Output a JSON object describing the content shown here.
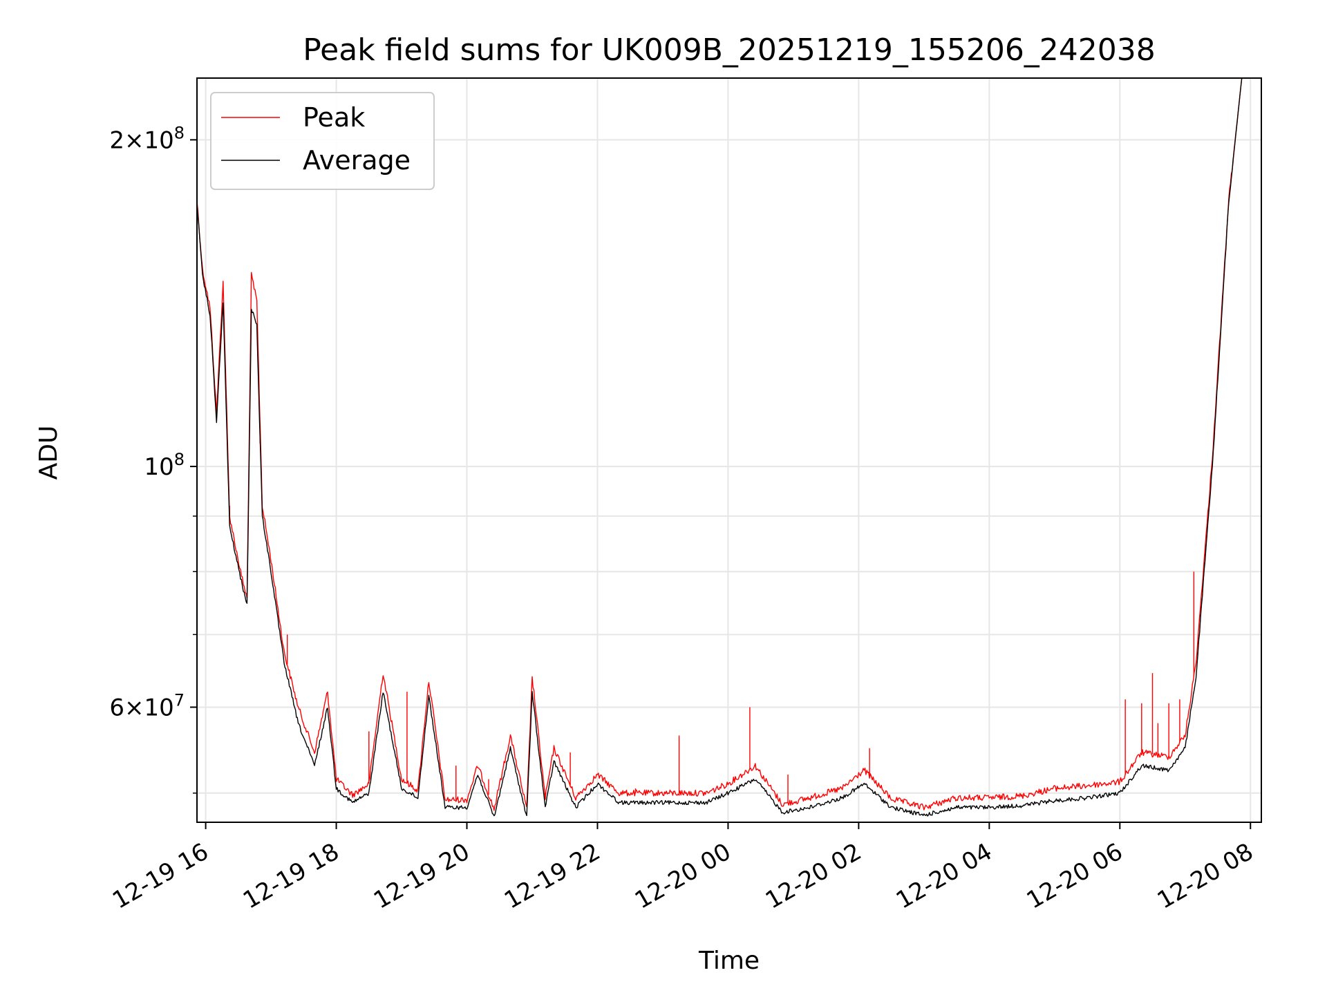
{
  "chart_data": {
    "type": "line",
    "title": "Peak field sums for UK009B_20251219_155206_242038",
    "xlabel": "Time",
    "ylabel": "ADU",
    "yscale": "log",
    "xlim": [
      "2025-12-19 15:52",
      "2025-12-20 08:10"
    ],
    "ylim": [
      47000000,
      228000000
    ],
    "grid": true,
    "legend": {
      "position": "top-left",
      "entries": [
        "Peak",
        "Average"
      ]
    },
    "x_ticks": [
      "12-19 16",
      "12-19 18",
      "12-19 20",
      "12-19 22",
      "12-20 00",
      "12-20 02",
      "12-20 04",
      "12-20 06",
      "12-20 08"
    ],
    "y_tick_labels": [
      {
        "value": 200000000,
        "mantissa": "2",
        "exponent": "8"
      },
      {
        "value": 100000000,
        "mantissa": "",
        "exponent": "8"
      },
      {
        "value": 60000000,
        "mantissa": "6",
        "exponent": "7"
      }
    ],
    "y_minor_ticks": [
      50000000,
      70000000,
      80000000,
      90000000
    ],
    "series": [
      {
        "name": "Average",
        "color": "#000000",
        "points": [
          [
            "2025-12-19 15:52",
            175000000
          ],
          [
            "2025-12-19 15:57",
            150000000
          ],
          [
            "2025-12-19 16:04",
            138000000
          ],
          [
            "2025-12-19 16:10",
            110000000
          ],
          [
            "2025-12-19 16:16",
            142000000
          ],
          [
            "2025-12-19 16:22",
            88000000
          ],
          [
            "2025-12-19 16:32",
            79000000
          ],
          [
            "2025-12-19 16:38",
            74500000
          ],
          [
            "2025-12-19 16:42",
            140000000
          ],
          [
            "2025-12-19 16:47",
            135000000
          ],
          [
            "2025-12-19 16:52",
            90000000
          ],
          [
            "2025-12-19 17:00",
            80000000
          ],
          [
            "2025-12-19 17:12",
            66000000
          ],
          [
            "2025-12-19 17:25",
            58000000
          ],
          [
            "2025-12-19 17:40",
            53000000
          ],
          [
            "2025-12-19 17:52",
            60000000
          ],
          [
            "2025-12-19 18:00",
            50500000
          ],
          [
            "2025-12-19 18:15",
            49000000
          ],
          [
            "2025-12-19 18:30",
            50000000
          ],
          [
            "2025-12-19 18:43",
            62000000
          ],
          [
            "2025-12-19 19:00",
            50500000
          ],
          [
            "2025-12-19 19:15",
            49500000
          ],
          [
            "2025-12-19 19:25",
            61500000
          ],
          [
            "2025-12-19 19:40",
            48500000
          ],
          [
            "2025-12-19 20:00",
            48500000
          ],
          [
            "2025-12-19 20:10",
            52000000
          ],
          [
            "2025-12-19 20:25",
            47500000
          ],
          [
            "2025-12-19 20:40",
            55000000
          ],
          [
            "2025-12-19 20:55",
            47500000
          ],
          [
            "2025-12-19 21:00",
            62000000
          ],
          [
            "2025-12-19 21:12",
            48500000
          ],
          [
            "2025-12-19 21:20",
            53500000
          ],
          [
            "2025-12-19 21:40",
            48500000
          ],
          [
            "2025-12-19 22:00",
            51000000
          ],
          [
            "2025-12-19 22:20",
            49000000
          ],
          [
            "2025-12-19 23:00",
            49000000
          ],
          [
            "2025-12-19 23:40",
            49000000
          ],
          [
            "2025-12-20 00:00",
            50000000
          ],
          [
            "2025-12-20 00:25",
            51500000
          ],
          [
            "2025-12-20 00:50",
            48000000
          ],
          [
            "2025-12-20 01:15",
            48500000
          ],
          [
            "2025-12-20 01:45",
            49500000
          ],
          [
            "2025-12-20 02:05",
            51000000
          ],
          [
            "2025-12-20 02:30",
            48500000
          ],
          [
            "2025-12-20 03:00",
            47700000
          ],
          [
            "2025-12-20 03:30",
            48500000
          ],
          [
            "2025-12-20 04:00",
            48500000
          ],
          [
            "2025-12-20 04:30",
            48700000
          ],
          [
            "2025-12-20 05:00",
            49200000
          ],
          [
            "2025-12-20 05:30",
            49500000
          ],
          [
            "2025-12-20 06:00",
            50000000
          ],
          [
            "2025-12-20 06:20",
            53000000
          ],
          [
            "2025-12-20 06:45",
            52500000
          ],
          [
            "2025-12-20 07:00",
            55000000
          ],
          [
            "2025-12-20 07:10",
            64000000
          ],
          [
            "2025-12-20 07:25",
            100000000
          ],
          [
            "2025-12-20 07:40",
            175000000
          ],
          [
            "2025-12-20 07:52",
            228000000
          ],
          [
            "2025-12-20 08:10",
            228000000
          ]
        ]
      },
      {
        "name": "Peak",
        "color": "#ff0000",
        "points": [
          [
            "2025-12-19 15:52",
            176000000
          ],
          [
            "2025-12-19 15:57",
            152000000
          ],
          [
            "2025-12-19 16:04",
            140000000
          ],
          [
            "2025-12-19 16:10",
            112000000
          ],
          [
            "2025-12-19 16:16",
            148000000
          ],
          [
            "2025-12-19 16:22",
            90000000
          ],
          [
            "2025-12-19 16:32",
            80000000
          ],
          [
            "2025-12-19 16:38",
            75500000
          ],
          [
            "2025-12-19 16:42",
            150000000
          ],
          [
            "2025-12-19 16:47",
            142000000
          ],
          [
            "2025-12-19 16:52",
            92000000
          ],
          [
            "2025-12-19 17:00",
            82000000
          ],
          [
            "2025-12-19 17:12",
            67500000
          ],
          [
            "2025-12-19 17:25",
            60000000
          ],
          [
            "2025-12-19 17:40",
            54500000
          ],
          [
            "2025-12-19 17:52",
            62000000
          ],
          [
            "2025-12-19 18:00",
            51500000
          ],
          [
            "2025-12-19 18:15",
            49800000
          ],
          [
            "2025-12-19 18:30",
            51000000
          ],
          [
            "2025-12-19 18:43",
            64500000
          ],
          [
            "2025-12-19 19:00",
            51500000
          ],
          [
            "2025-12-19 19:15",
            50300000
          ],
          [
            "2025-12-19 19:25",
            63500000
          ],
          [
            "2025-12-19 19:40",
            49300000
          ],
          [
            "2025-12-19 20:00",
            49300000
          ],
          [
            "2025-12-19 20:10",
            53000000
          ],
          [
            "2025-12-19 20:25",
            48300000
          ],
          [
            "2025-12-19 20:40",
            56500000
          ],
          [
            "2025-12-19 20:55",
            48300000
          ],
          [
            "2025-12-19 21:00",
            64000000
          ],
          [
            "2025-12-19 21:12",
            49500000
          ],
          [
            "2025-12-19 21:20",
            55000000
          ],
          [
            "2025-12-19 21:40",
            49500000
          ],
          [
            "2025-12-19 22:00",
            52000000
          ],
          [
            "2025-12-19 22:20",
            50000000
          ],
          [
            "2025-12-19 23:00",
            50000000
          ],
          [
            "2025-12-19 23:40",
            50000000
          ],
          [
            "2025-12-20 00:00",
            51000000
          ],
          [
            "2025-12-20 00:25",
            53000000
          ],
          [
            "2025-12-20 00:50",
            48800000
          ],
          [
            "2025-12-20 01:15",
            49500000
          ],
          [
            "2025-12-20 01:45",
            50500000
          ],
          [
            "2025-12-20 02:05",
            52500000
          ],
          [
            "2025-12-20 02:30",
            49400000
          ],
          [
            "2025-12-20 03:00",
            48500000
          ],
          [
            "2025-12-20 03:30",
            49500000
          ],
          [
            "2025-12-20 04:00",
            49500000
          ],
          [
            "2025-12-20 04:30",
            49700000
          ],
          [
            "2025-12-20 05:00",
            50500000
          ],
          [
            "2025-12-20 05:30",
            50800000
          ],
          [
            "2025-12-20 06:00",
            51200000
          ],
          [
            "2025-12-20 06:20",
            54500000
          ],
          [
            "2025-12-20 06:45",
            54000000
          ],
          [
            "2025-12-20 07:00",
            56500000
          ],
          [
            "2025-12-20 07:10",
            66000000
          ],
          [
            "2025-12-20 07:25",
            102000000
          ],
          [
            "2025-12-20 07:40",
            176000000
          ],
          [
            "2025-12-20 07:52",
            228000000
          ],
          [
            "2025-12-20 08:10",
            228000000
          ]
        ],
        "spikes": [
          [
            "2025-12-19 16:22",
            92000000
          ],
          [
            "2025-12-19 16:50",
            105000000
          ],
          [
            "2025-12-19 17:15",
            70000000
          ],
          [
            "2025-12-19 18:30",
            57000000
          ],
          [
            "2025-12-19 19:05",
            62000000
          ],
          [
            "2025-12-19 19:50",
            53000000
          ],
          [
            "2025-12-19 20:20",
            51500000
          ],
          [
            "2025-12-19 21:35",
            54500000
          ],
          [
            "2025-12-19 22:35",
            50500000
          ],
          [
            "2025-12-19 23:15",
            56500000
          ],
          [
            "2025-12-20 00:20",
            60000000
          ],
          [
            "2025-12-20 00:55",
            52000000
          ],
          [
            "2025-12-20 02:10",
            55000000
          ],
          [
            "2025-12-20 06:05",
            61000000
          ],
          [
            "2025-12-20 06:20",
            60500000
          ],
          [
            "2025-12-20 06:30",
            64500000
          ],
          [
            "2025-12-20 06:35",
            58000000
          ],
          [
            "2025-12-20 06:45",
            60500000
          ],
          [
            "2025-12-20 06:55",
            61000000
          ],
          [
            "2025-12-20 07:08",
            80000000
          ]
        ]
      }
    ]
  }
}
